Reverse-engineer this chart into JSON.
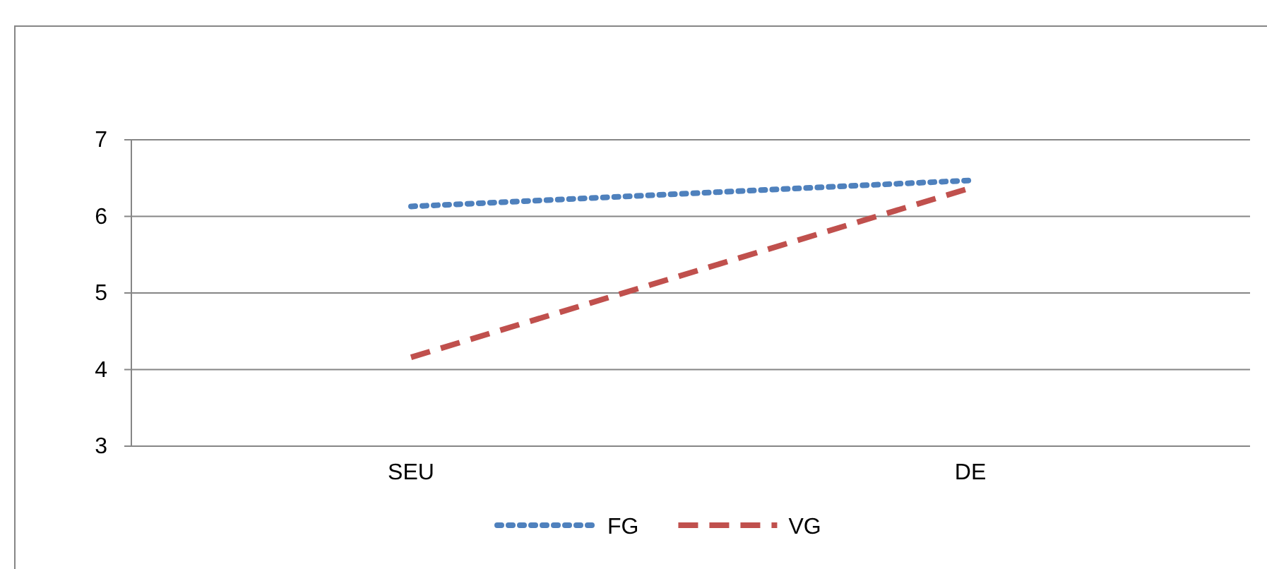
{
  "chart_data": {
    "type": "line",
    "categories": [
      "SEU",
      "DE"
    ],
    "series": [
      {
        "name": "FG",
        "color": "#4f81bd",
        "values": [
          6.13,
          6.47
        ],
        "line_style": "dotted"
      },
      {
        "name": "VG",
        "color": "#c0504d",
        "values": [
          4.16,
          6.37
        ],
        "line_style": "dashed"
      }
    ],
    "ylim": [
      3,
      7
    ],
    "yticks": [
      3,
      4,
      5,
      6,
      7
    ],
    "grid": "y",
    "legend": "bottom",
    "marker": "none"
  }
}
